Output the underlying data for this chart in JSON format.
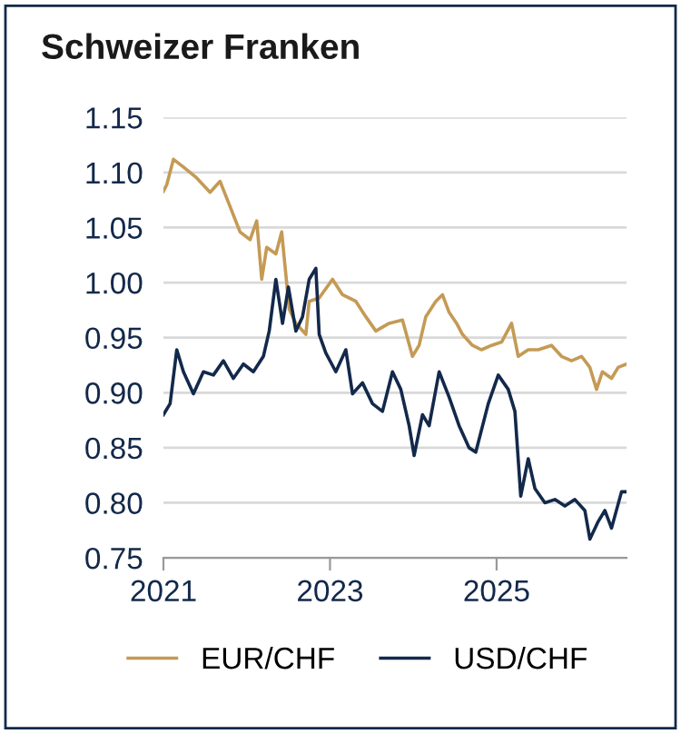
{
  "chart_data": {
    "type": "line",
    "title": "Schweizer Franken",
    "xlim": [
      2021,
      2026.56
    ],
    "xticks": [
      2021,
      2023,
      2025
    ],
    "ylim": [
      0.75,
      1.15
    ],
    "yticks": [
      {
        "value": 0.75,
        "label": "0.75"
      },
      {
        "value": 0.8,
        "label": "0.80"
      },
      {
        "value": 0.85,
        "label": "0.85"
      },
      {
        "value": 0.9,
        "label": "0.90"
      },
      {
        "value": 0.95,
        "label": "0.95"
      },
      {
        "value": 1.0,
        "label": "1.00"
      },
      {
        "value": 1.05,
        "label": "1.05"
      },
      {
        "value": 1.1,
        "label": "1.10"
      },
      {
        "value": 1.15,
        "label": "1.15"
      }
    ],
    "grid": "y",
    "legend": "bottom",
    "series": [
      {
        "name": "EUR/CHF",
        "color": "#c49a55",
        "x": [
          2021.0,
          2021.04,
          2021.12,
          2021.24,
          2021.4,
          2021.56,
          2021.68,
          2021.8,
          2021.92,
          2022.04,
          2022.12,
          2022.18,
          2022.24,
          2022.35,
          2022.42,
          2022.51,
          2022.59,
          2022.71,
          2022.75,
          2022.87,
          2023.03,
          2023.15,
          2023.31,
          2023.43,
          2023.55,
          2023.71,
          2023.87,
          2023.99,
          2024.07,
          2024.15,
          2024.27,
          2024.35,
          2024.43,
          2024.52,
          2024.59,
          2024.71,
          2024.82,
          2024.94,
          2025.06,
          2025.18,
          2025.26,
          2025.38,
          2025.5,
          2025.66,
          2025.78,
          2025.9,
          2026.02,
          2026.12,
          2026.2,
          2026.27,
          2026.38,
          2026.46,
          2026.56
        ],
        "values": [
          1.083,
          1.089,
          1.112,
          1.105,
          1.095,
          1.082,
          1.092,
          1.069,
          1.046,
          1.039,
          1.056,
          1.003,
          1.032,
          1.026,
          1.046,
          0.976,
          0.963,
          0.953,
          0.983,
          0.986,
          1.003,
          0.989,
          0.983,
          0.969,
          0.956,
          0.963,
          0.966,
          0.933,
          0.943,
          0.969,
          0.983,
          0.989,
          0.973,
          0.963,
          0.953,
          0.943,
          0.939,
          0.943,
          0.946,
          0.963,
          0.933,
          0.939,
          0.939,
          0.943,
          0.933,
          0.929,
          0.933,
          0.923,
          0.903,
          0.919,
          0.913,
          0.923,
          0.926
        ]
      },
      {
        "name": "USD/CHF",
        "color": "#13294b",
        "x": [
          2021.0,
          2021.08,
          2021.16,
          2021.24,
          2021.36,
          2021.48,
          2021.6,
          2021.72,
          2021.84,
          2021.96,
          2022.08,
          2022.2,
          2022.27,
          2022.35,
          2022.43,
          2022.5,
          2022.59,
          2022.67,
          2022.75,
          2022.83,
          2022.87,
          2022.95,
          2023.07,
          2023.19,
          2023.27,
          2023.39,
          2023.51,
          2023.63,
          2023.75,
          2023.85,
          2023.95,
          2024.01,
          2024.11,
          2024.19,
          2024.31,
          2024.43,
          2024.55,
          2024.67,
          2024.75,
          2024.9,
          2025.02,
          2025.14,
          2025.22,
          2025.29,
          2025.38,
          2025.46,
          2025.58,
          2025.7,
          2025.82,
          2025.94,
          2026.06,
          2026.12,
          2026.22,
          2026.3,
          2026.38,
          2026.5,
          2026.56
        ],
        "values": [
          0.88,
          0.89,
          0.939,
          0.919,
          0.899,
          0.919,
          0.916,
          0.929,
          0.913,
          0.926,
          0.919,
          0.933,
          0.956,
          1.003,
          0.963,
          0.996,
          0.956,
          0.969,
          1.003,
          1.013,
          0.953,
          0.936,
          0.919,
          0.939,
          0.899,
          0.909,
          0.89,
          0.883,
          0.919,
          0.903,
          0.87,
          0.843,
          0.88,
          0.87,
          0.919,
          0.896,
          0.87,
          0.85,
          0.846,
          0.89,
          0.916,
          0.903,
          0.883,
          0.806,
          0.84,
          0.813,
          0.8,
          0.803,
          0.797,
          0.803,
          0.793,
          0.767,
          0.783,
          0.793,
          0.777,
          0.81,
          0.81
        ]
      }
    ]
  }
}
